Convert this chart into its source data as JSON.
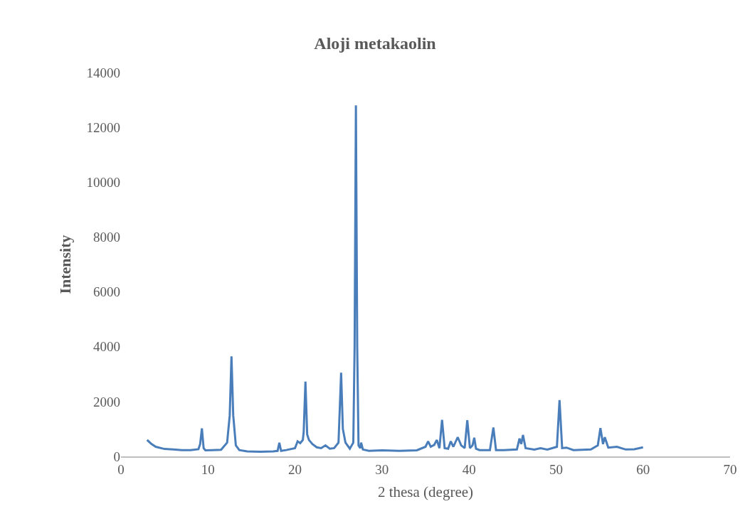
{
  "chart_data": {
    "type": "line",
    "title": "Aloji metakaolin",
    "xlabel": "2 thesa (degree)",
    "ylabel": "Intensity",
    "xlim": [
      0,
      70
    ],
    "xticks": [
      0,
      10,
      20,
      30,
      40,
      50,
      60,
      70
    ],
    "ylim": [
      0,
      14000
    ],
    "yticks": [
      0,
      2000,
      4000,
      6000,
      8000,
      10000,
      12000,
      14000
    ],
    "legend": false,
    "marker": "none",
    "line_style": "solid",
    "series": [
      {
        "color": "#4a7ebb",
        "x": [
          3.0,
          3.5,
          4.0,
          5.0,
          6.0,
          7.0,
          8.0,
          8.9,
          9.1,
          9.3,
          9.5,
          9.7,
          10.5,
          11.5,
          12.2,
          12.5,
          12.7,
          12.9,
          13.2,
          13.6,
          14.5,
          16.0,
          17.5,
          18.0,
          18.2,
          18.4,
          19.0,
          20.0,
          20.3,
          20.6,
          20.9,
          21.0,
          21.2,
          21.4,
          21.6,
          22.0,
          22.5,
          23.0,
          23.5,
          24.0,
          24.5,
          25.0,
          25.3,
          25.5,
          25.8,
          26.3,
          26.7,
          26.85,
          27.0,
          27.15,
          27.3,
          27.5,
          27.6,
          27.8,
          28.5,
          30.0,
          32.0,
          34.0,
          35.0,
          35.3,
          35.6,
          36.0,
          36.3,
          36.6,
          36.9,
          37.2,
          37.6,
          37.9,
          38.2,
          38.7,
          39.1,
          39.5,
          39.8,
          40.1,
          40.4,
          40.6,
          40.8,
          41.2,
          42.4,
          42.8,
          43.1,
          44.0,
          45.5,
          45.8,
          46.0,
          46.2,
          46.5,
          47.5,
          48.2,
          49.0,
          50.1,
          50.4,
          50.7,
          51.2,
          52.0,
          54.0,
          54.8,
          55.1,
          55.4,
          55.6,
          56.0,
          57.0,
          58.0,
          59.0,
          60.0
        ],
        "values": [
          600,
          450,
          350,
          270,
          250,
          230,
          230,
          260,
          450,
          1020,
          300,
          220,
          230,
          240,
          500,
          1500,
          3650,
          1500,
          400,
          230,
          180,
          170,
          180,
          200,
          500,
          200,
          230,
          300,
          550,
          480,
          600,
          900,
          2730,
          800,
          600,
          450,
          330,
          300,
          400,
          280,
          300,
          500,
          3050,
          1000,
          500,
          280,
          500,
          4000,
          12800,
          4000,
          400,
          300,
          500,
          250,
          200,
          220,
          200,
          220,
          350,
          550,
          350,
          420,
          600,
          300,
          1330,
          300,
          280,
          550,
          350,
          700,
          400,
          300,
          1320,
          300,
          400,
          680,
          280,
          230,
          230,
          1050,
          230,
          230,
          250,
          650,
          450,
          780,
          300,
          250,
          300,
          250,
          350,
          2050,
          300,
          320,
          230,
          250,
          400,
          1030,
          450,
          700,
          320,
          350,
          250,
          260,
          330
        ]
      }
    ]
  }
}
